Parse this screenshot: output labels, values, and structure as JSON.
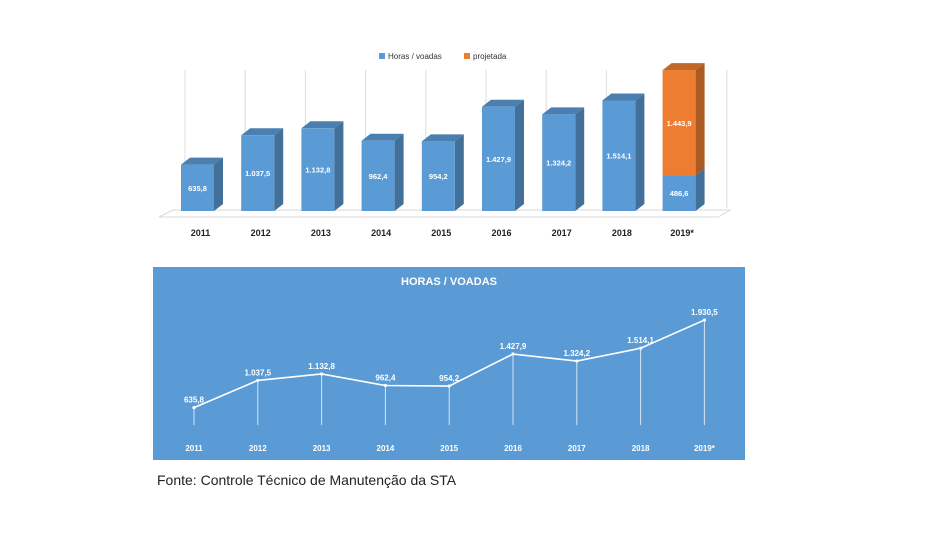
{
  "chart_data": [
    {
      "type": "bar",
      "categories": [
        "2011",
        "2012",
        "2013",
        "2014",
        "2015",
        "2016",
        "2017",
        "2018",
        "2019*"
      ],
      "series": [
        {
          "name": "Horas / voadas",
          "values": [
            635.8,
            1037.5,
            1132.8,
            962.4,
            954.2,
            1427.9,
            1324.2,
            1514.1,
            486.6
          ]
        },
        {
          "name": "projetada",
          "values": [
            null,
            null,
            null,
            null,
            null,
            null,
            null,
            null,
            1443.9
          ]
        }
      ],
      "value_labels": {
        "Horas / voadas": [
          "635,8",
          "1.037,5",
          "1.132,8",
          "962,4",
          "954,2",
          "1.427,9",
          "1.324,2",
          "1.514,1",
          "486,6"
        ],
        "projetada": [
          null,
          null,
          null,
          null,
          null,
          null,
          null,
          null,
          "1.443,9"
        ]
      },
      "stacked": true,
      "style": "3d",
      "legend_position": "top",
      "colors": {
        "Horas / voadas": "#5b9bd5",
        "projetada": "#ed7d31"
      },
      "ylim": [
        0,
        2000
      ]
    },
    {
      "type": "line",
      "title": "HORAS / VOADAS",
      "categories": [
        "2011",
        "2012",
        "2013",
        "2014",
        "2015",
        "2016",
        "2017",
        "2018",
        "2019*"
      ],
      "values": [
        635.8,
        1037.5,
        1132.8,
        962.4,
        954.2,
        1427.9,
        1324.2,
        1514.1,
        1930.5
      ],
      "value_labels": [
        "635,8",
        "1.037,5",
        "1.132,8",
        "962,4",
        "954,2",
        "1.427,9",
        "1.324,2",
        "1.514,1",
        "1.930,5"
      ],
      "background": "#5b9bd5",
      "line_color": "#ffffff",
      "ylim": [
        0,
        2000
      ]
    }
  ],
  "source": "Fonte: Controle Técnico de Manutenção da STA"
}
